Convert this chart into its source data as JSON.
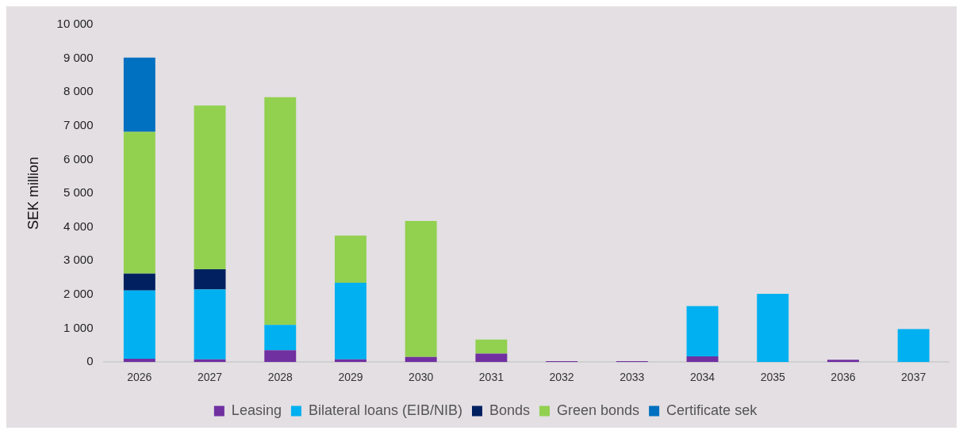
{
  "chart_data": {
    "type": "bar",
    "stacked": true,
    "ylabel": "SEK million",
    "categories": [
      "2026",
      "2027",
      "2028",
      "2029",
      "2030",
      "2031",
      "2032",
      "2033",
      "2034",
      "2035",
      "2036",
      "2037"
    ],
    "series": [
      {
        "name": "Leasing",
        "color": "#7030a0",
        "values": [
          100,
          80,
          350,
          80,
          150,
          250,
          30,
          30,
          170,
          null,
          70,
          null
        ]
      },
      {
        "name": "Bilateral loans (EIB/NIB)",
        "color": "#00b0f0",
        "values": [
          2020,
          2070,
          750,
          2270,
          null,
          null,
          null,
          null,
          1490,
          2020,
          null,
          980
        ]
      },
      {
        "name": "Bonds",
        "color": "#002060",
        "values": [
          500,
          600,
          null,
          null,
          null,
          null,
          null,
          null,
          null,
          null,
          null,
          null
        ]
      },
      {
        "name": "Green bonds",
        "color": "#92d050",
        "values": [
          4200,
          4850,
          6750,
          1400,
          4030,
          420,
          null,
          null,
          null,
          null,
          null,
          null
        ]
      },
      {
        "name": "Certificate sek",
        "color": "#0070c0",
        "values": [
          2200,
          null,
          null,
          null,
          null,
          null,
          null,
          null,
          null,
          null,
          null,
          null
        ]
      }
    ],
    "ylim": [
      0,
      10000
    ],
    "yticks": [
      {
        "value": 0,
        "label": "0"
      },
      {
        "value": 1000,
        "label": "1 000"
      },
      {
        "value": 2000,
        "label": "2 000"
      },
      {
        "value": 3000,
        "label": "3 000"
      },
      {
        "value": 4000,
        "label": "4 000"
      },
      {
        "value": 5000,
        "label": "5 000"
      },
      {
        "value": 6000,
        "label": "6 000"
      },
      {
        "value": 7000,
        "label": "7 000"
      },
      {
        "value": 8000,
        "label": "8 000"
      },
      {
        "value": 9000,
        "label": "9 000"
      },
      {
        "value": 10000,
        "label": "10 000"
      }
    ],
    "grid": false,
    "legend": "bottom"
  }
}
